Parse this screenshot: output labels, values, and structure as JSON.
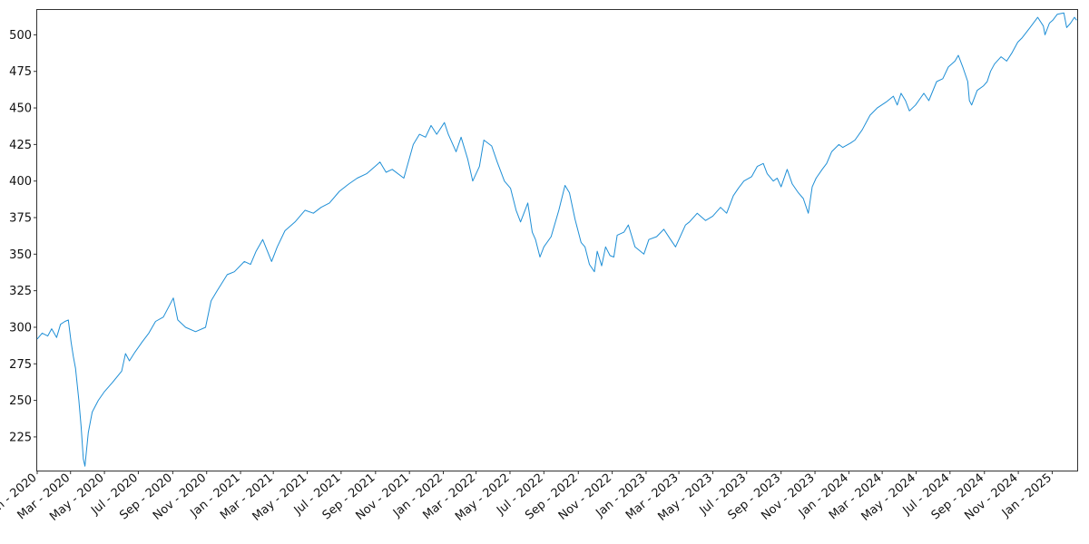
{
  "chart_data": {
    "type": "line",
    "title": "",
    "xlabel": "",
    "ylabel": "",
    "ylim": [
      202,
      517
    ],
    "xlim": [
      "2020-01-01",
      "2025-02-15"
    ],
    "grid": false,
    "legend": "none",
    "line_color": "#1f8fd6",
    "y_ticks": [
      225,
      250,
      275,
      300,
      325,
      350,
      375,
      400,
      425,
      450,
      475,
      500
    ],
    "x_ticks": [
      {
        "date": "2020-01-01",
        "label": "Jan - 2020"
      },
      {
        "date": "2020-03-01",
        "label": "Mar - 2020"
      },
      {
        "date": "2020-05-01",
        "label": "May - 2020"
      },
      {
        "date": "2020-07-01",
        "label": "Jul - 2020"
      },
      {
        "date": "2020-09-01",
        "label": "Sep - 2020"
      },
      {
        "date": "2020-11-01",
        "label": "Nov - 2020"
      },
      {
        "date": "2021-01-01",
        "label": "Jan - 2021"
      },
      {
        "date": "2021-03-01",
        "label": "Mar - 2021"
      },
      {
        "date": "2021-05-01",
        "label": "May - 2021"
      },
      {
        "date": "2021-07-01",
        "label": "Jul - 2021"
      },
      {
        "date": "2021-09-01",
        "label": "Sep - 2021"
      },
      {
        "date": "2021-11-01",
        "label": "Nov - 2021"
      },
      {
        "date": "2022-01-01",
        "label": "Jan - 2022"
      },
      {
        "date": "2022-03-01",
        "label": "Mar - 2022"
      },
      {
        "date": "2022-05-01",
        "label": "May - 2022"
      },
      {
        "date": "2022-07-01",
        "label": "Jul - 2022"
      },
      {
        "date": "2022-09-01",
        "label": "Sep - 2022"
      },
      {
        "date": "2022-11-01",
        "label": "Nov - 2022"
      },
      {
        "date": "2023-01-01",
        "label": "Jan - 2023"
      },
      {
        "date": "2023-03-01",
        "label": "Mar - 2023"
      },
      {
        "date": "2023-05-01",
        "label": "May - 2023"
      },
      {
        "date": "2023-07-01",
        "label": "Jul - 2023"
      },
      {
        "date": "2023-09-01",
        "label": "Sep - 2023"
      },
      {
        "date": "2023-11-01",
        "label": "Nov - 2023"
      },
      {
        "date": "2024-01-01",
        "label": "Jan - 2024"
      },
      {
        "date": "2024-03-01",
        "label": "Mar - 2024"
      },
      {
        "date": "2024-05-01",
        "label": "May - 2024"
      },
      {
        "date": "2024-07-01",
        "label": "Jul - 2024"
      },
      {
        "date": "2024-09-01",
        "label": "Sep - 2024"
      },
      {
        "date": "2024-11-01",
        "label": "Nov - 2024"
      },
      {
        "date": "2025-01-01",
        "label": "Jan - 2025"
      }
    ],
    "series": [
      {
        "x": [
          "2020-01-01",
          "2020-01-10",
          "2020-01-20",
          "2020-01-27",
          "2020-02-05",
          "2020-02-12",
          "2020-02-20",
          "2020-02-26",
          "2020-03-02",
          "2020-03-06",
          "2020-03-10",
          "2020-03-16",
          "2020-03-20",
          "2020-03-24",
          "2020-03-27",
          "2020-04-02",
          "2020-04-09",
          "2020-04-20",
          "2020-05-01",
          "2020-05-15",
          "2020-06-01",
          "2020-06-08",
          "2020-06-15",
          "2020-06-25",
          "2020-07-08",
          "2020-07-20",
          "2020-08-01",
          "2020-08-15",
          "2020-09-02",
          "2020-09-10",
          "2020-09-24",
          "2020-10-12",
          "2020-10-30",
          "2020-11-09",
          "2020-11-20",
          "2020-12-08",
          "2020-12-21",
          "2021-01-08",
          "2021-01-19",
          "2021-01-29",
          "2021-02-10",
          "2021-02-26",
          "2021-03-08",
          "2021-03-22",
          "2021-04-09",
          "2021-04-27",
          "2021-05-12",
          "2021-05-26",
          "2021-06-10",
          "2021-06-28",
          "2021-07-15",
          "2021-07-30",
          "2021-08-16",
          "2021-08-31",
          "2021-09-09",
          "2021-09-20",
          "2021-10-01",
          "2021-10-22",
          "2021-11-08",
          "2021-11-19",
          "2021-11-30",
          "2021-12-10",
          "2021-12-20",
          "2022-01-03",
          "2022-01-10",
          "2022-01-24",
          "2022-02-02",
          "2022-02-14",
          "2022-02-23",
          "2022-03-07",
          "2022-03-15",
          "2022-03-29",
          "2022-04-08",
          "2022-04-21",
          "2022-05-02",
          "2022-05-12",
          "2022-05-20",
          "2022-06-02",
          "2022-06-10",
          "2022-06-16",
          "2022-06-24",
          "2022-07-01",
          "2022-07-14",
          "2022-07-28",
          "2022-08-08",
          "2022-08-16",
          "2022-08-26",
          "2022-09-06",
          "2022-09-13",
          "2022-09-21",
          "2022-09-30",
          "2022-10-05",
          "2022-10-13",
          "2022-10-20",
          "2022-10-28",
          "2022-11-04",
          "2022-11-10",
          "2022-11-22",
          "2022-11-30",
          "2022-12-12",
          "2022-12-28",
          "2023-01-06",
          "2023-01-20",
          "2023-02-02",
          "2023-02-14",
          "2023-02-23",
          "2023-03-13",
          "2023-03-20",
          "2023-04-03",
          "2023-04-18",
          "2023-05-01",
          "2023-05-15",
          "2023-05-26",
          "2023-06-07",
          "2023-06-16",
          "2023-06-26",
          "2023-07-10",
          "2023-07-20",
          "2023-07-31",
          "2023-08-07",
          "2023-08-18",
          "2023-08-25",
          "2023-09-01",
          "2023-09-12",
          "2023-09-21",
          "2023-10-02",
          "2023-10-11",
          "2023-10-20",
          "2023-10-27",
          "2023-11-03",
          "2023-11-14",
          "2023-11-22",
          "2023-12-01",
          "2023-12-14",
          "2023-12-21",
          "2024-01-04",
          "2024-01-12",
          "2024-01-25",
          "2024-02-08",
          "2024-02-21",
          "2024-03-08",
          "2024-03-21",
          "2024-03-28",
          "2024-04-04",
          "2024-04-12",
          "2024-04-19",
          "2024-04-30",
          "2024-05-15",
          "2024-05-24",
          "2024-06-07",
          "2024-06-18",
          "2024-06-28",
          "2024-07-10",
          "2024-07-16",
          "2024-07-24",
          "2024-08-02",
          "2024-08-05",
          "2024-08-09",
          "2024-08-19",
          "2024-08-30",
          "2024-09-06",
          "2024-09-12",
          "2024-09-19",
          "2024-10-01",
          "2024-10-11",
          "2024-10-21",
          "2024-10-31",
          "2024-11-08",
          "2024-11-22",
          "2024-12-06",
          "2024-12-16",
          "2024-12-19",
          "2024-12-27",
          "2025-01-02",
          "2025-01-10",
          "2025-01-22",
          "2025-01-27",
          "2025-02-03",
          "2025-02-10",
          "2025-02-14"
        ],
        "y": [
          292,
          296,
          294,
          299,
          293,
          302,
          304,
          305,
          290,
          280,
          272,
          250,
          232,
          210,
          205,
          228,
          242,
          250,
          256,
          262,
          270,
          282,
          277,
          283,
          290,
          296,
          304,
          307,
          320,
          305,
          300,
          297,
          300,
          318,
          325,
          336,
          338,
          345,
          343,
          352,
          360,
          345,
          355,
          366,
          372,
          380,
          378,
          382,
          385,
          393,
          398,
          402,
          405,
          410,
          413,
          406,
          408,
          402,
          425,
          432,
          430,
          438,
          432,
          440,
          432,
          420,
          430,
          415,
          400,
          410,
          428,
          424,
          413,
          400,
          395,
          380,
          372,
          385,
          365,
          360,
          348,
          355,
          362,
          380,
          397,
          392,
          374,
          358,
          355,
          343,
          338,
          352,
          342,
          355,
          349,
          348,
          363,
          365,
          370,
          355,
          350,
          360,
          362,
          367,
          360,
          355,
          370,
          372,
          378,
          373,
          376,
          382,
          378,
          390,
          395,
          400,
          403,
          410,
          412,
          405,
          400,
          402,
          396,
          408,
          398,
          392,
          388,
          378,
          396,
          402,
          408,
          412,
          420,
          425,
          423,
          426,
          428,
          435,
          445,
          450,
          454,
          458,
          452,
          460,
          455,
          448,
          452,
          460,
          455,
          468,
          470,
          478,
          482,
          486,
          478,
          468,
          455,
          452,
          462,
          465,
          468,
          475,
          480,
          485,
          482,
          488,
          495,
          498,
          505,
          512,
          506,
          500,
          508,
          510,
          514,
          515,
          505,
          508,
          512,
          510
        ]
      }
    ]
  }
}
